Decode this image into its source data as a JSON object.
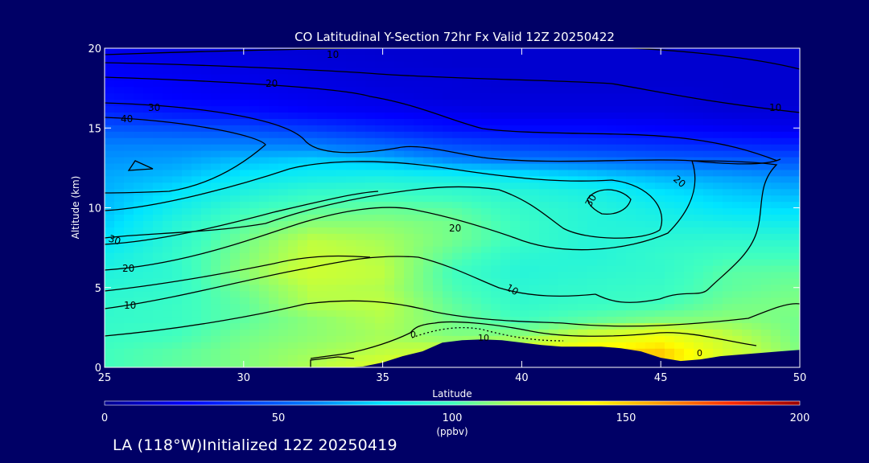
{
  "chart_data": {
    "type": "heatmap",
    "title": "CO Latitudinal Y-Section 72hr  Fx Valid 12Z 20250422",
    "xlabel": "Latitude",
    "ylabel": "Altitude (km)",
    "xlim": [
      25,
      50
    ],
    "ylim": [
      0,
      20
    ],
    "x_ticks": [
      "25",
      "30",
      "35",
      "40",
      "45",
      "50"
    ],
    "y_ticks": [
      "0",
      "5",
      "10",
      "15",
      "20"
    ],
    "colorbar": {
      "label": "(ppbv)",
      "min": 0,
      "max": 200,
      "ticks": [
        "0",
        "50",
        "100",
        "150",
        "200"
      ]
    },
    "contour_labels": [
      "10",
      "20",
      "30",
      "40",
      "30",
      "20",
      "10",
      "20",
      "30",
      "10",
      "20",
      "10",
      "10",
      "0",
      "0"
    ],
    "lat": [
      25,
      27.5,
      30,
      32.5,
      35,
      37.5,
      40,
      42.5,
      45,
      47.5,
      50
    ],
    "alt": [
      0,
      1,
      2,
      3,
      4,
      5,
      6,
      7,
      8,
      9,
      10,
      11,
      12,
      13,
      14,
      15,
      16,
      17,
      18,
      19,
      20
    ],
    "values": [
      [
        100,
        105,
        110,
        118,
        130,
        150,
        140,
        140,
        150,
        120,
        110
      ],
      [
        100,
        104,
        110,
        115,
        120,
        125,
        130,
        145,
        150,
        125,
        110
      ],
      [
        98,
        100,
        108,
        112,
        116,
        110,
        112,
        125,
        135,
        120,
        108
      ],
      [
        96,
        98,
        105,
        112,
        118,
        108,
        100,
        105,
        110,
        112,
        108
      ],
      [
        95,
        98,
        105,
        118,
        120,
        105,
        96,
        98,
        100,
        108,
        110
      ],
      [
        93,
        96,
        108,
        120,
        118,
        102,
        94,
        96,
        98,
        105,
        108
      ],
      [
        90,
        95,
        112,
        125,
        120,
        100,
        92,
        94,
        96,
        104,
        105
      ],
      [
        86,
        96,
        110,
        122,
        118,
        104,
        94,
        92,
        96,
        100,
        100
      ],
      [
        80,
        94,
        108,
        120,
        116,
        108,
        98,
        92,
        94,
        95,
        94
      ],
      [
        76,
        92,
        104,
        112,
        112,
        108,
        98,
        92,
        90,
        88,
        86
      ],
      [
        72,
        86,
        98,
        104,
        106,
        104,
        96,
        92,
        86,
        80,
        78
      ],
      [
        70,
        80,
        90,
        96,
        98,
        96,
        92,
        88,
        80,
        74,
        70
      ],
      [
        68,
        72,
        82,
        86,
        88,
        86,
        82,
        76,
        70,
        66,
        62
      ],
      [
        64,
        66,
        72,
        76,
        72,
        62,
        58,
        56,
        52,
        50,
        48
      ],
      [
        60,
        60,
        60,
        58,
        52,
        44,
        40,
        38,
        36,
        34,
        32
      ],
      [
        48,
        46,
        44,
        40,
        34,
        28,
        26,
        26,
        24,
        22,
        20
      ],
      [
        34,
        30,
        28,
        24,
        22,
        20,
        18,
        18,
        18,
        16,
        16
      ],
      [
        28,
        24,
        22,
        20,
        18,
        16,
        16,
        16,
        16,
        14,
        14
      ],
      [
        24,
        22,
        20,
        18,
        16,
        16,
        14,
        14,
        14,
        14,
        14
      ],
      [
        22,
        20,
        18,
        16,
        15,
        14,
        14,
        14,
        14,
        14,
        14
      ],
      [
        20,
        18,
        16,
        15,
        14,
        14,
        14,
        14,
        14,
        14,
        14
      ]
    ],
    "terrain_km": [
      0,
      0,
      0,
      0,
      0,
      0,
      0,
      0,
      0,
      0,
      0,
      0,
      0,
      0.05,
      0.3,
      0.7,
      1.0,
      1.55,
      1.7,
      1.75,
      1.7,
      1.55,
      1.4,
      1.3,
      1.3,
      1.3,
      1.2,
      1.0,
      0.6,
      0.4,
      0.5,
      0.7,
      0.8,
      0.9,
      1.0,
      1.1
    ],
    "footer": "LA (118°W)Initialized 12Z 20250419"
  }
}
